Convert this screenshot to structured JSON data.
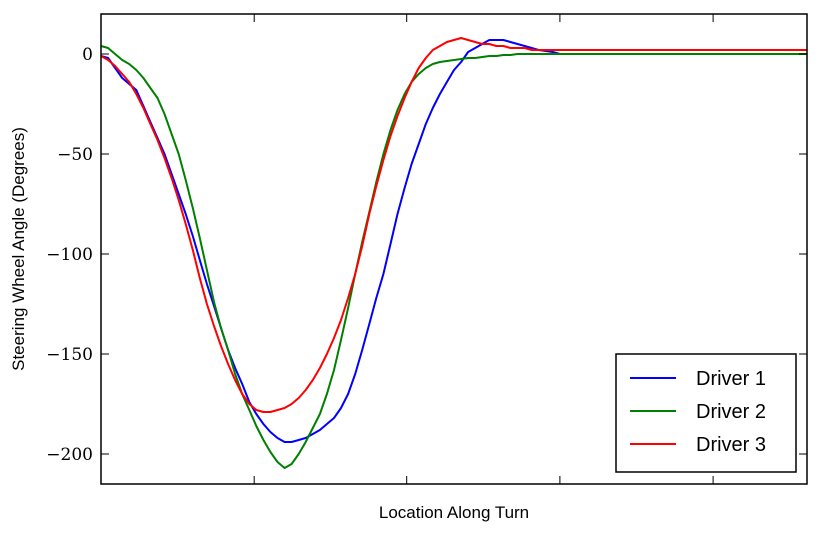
{
  "chart_data": {
    "type": "line",
    "xlabel": "Location Along Turn",
    "ylabel": "Steering Wheel Angle (Degrees)",
    "xlim": [
      0,
      100
    ],
    "ylim": [
      -215,
      20
    ],
    "x_ticks": [
      21.7,
      43.3,
      65.0,
      86.7
    ],
    "y_ticks": [
      0,
      -50,
      -100,
      -150,
      -200
    ],
    "y_tick_labels": [
      "0",
      "−50",
      "−100",
      "−150",
      "−200"
    ],
    "grid": false,
    "legend_position": "bottom-right",
    "series": [
      {
        "name": "Driver 1",
        "color": "#0000ff",
        "x": [
          0,
          1,
          2,
          3,
          4,
          5,
          6,
          7,
          8,
          9,
          10,
          11,
          12,
          13,
          14,
          15,
          16,
          17,
          18,
          19,
          20,
          21,
          22,
          23,
          24,
          25,
          26,
          27,
          28,
          29,
          30,
          31,
          32,
          33,
          34,
          35,
          36,
          37,
          38,
          39,
          40,
          41,
          42,
          43,
          44,
          45,
          46,
          47,
          48,
          49,
          50,
          51,
          52,
          53,
          54,
          55,
          56,
          57,
          58,
          59,
          60,
          61,
          62,
          63,
          64,
          65,
          66,
          67,
          68,
          69,
          70,
          71,
          72,
          73,
          74,
          75,
          76,
          77,
          78,
          79,
          80,
          81,
          82,
          83,
          84,
          85,
          86,
          87,
          88,
          89,
          90,
          91,
          92,
          93,
          94,
          95,
          96,
          97,
          98,
          99,
          100
        ],
        "values": [
          -1,
          -2,
          -7,
          -12,
          -15,
          -18,
          -26,
          -34,
          -42,
          -50,
          -60,
          -70,
          -80,
          -91,
          -103,
          -115,
          -126,
          -137,
          -148,
          -157,
          -165,
          -174,
          -180,
          -185,
          -189,
          -192,
          -194,
          -194,
          -193,
          -192,
          -190,
          -188,
          -185,
          -182,
          -177,
          -170,
          -160,
          -148,
          -135,
          -122,
          -110,
          -95,
          -80,
          -67,
          -55,
          -45,
          -35,
          -27,
          -20,
          -14,
          -8,
          -4,
          1,
          3,
          5,
          7,
          7,
          7,
          6,
          5,
          4,
          3,
          2,
          1.5,
          1,
          0,
          0,
          0,
          0,
          0,
          0,
          0,
          0,
          0,
          0,
          0,
          0,
          0,
          0,
          0,
          0,
          0,
          0,
          0,
          0,
          0,
          0,
          0,
          0,
          0,
          0,
          0,
          0,
          0,
          0,
          0,
          0,
          0,
          0,
          0,
          0
        ]
      },
      {
        "name": "Driver 2",
        "color": "#008000",
        "x": [
          0,
          1,
          2,
          3,
          4,
          5,
          6,
          7,
          8,
          9,
          10,
          11,
          12,
          13,
          14,
          15,
          16,
          17,
          18,
          19,
          20,
          21,
          22,
          23,
          24,
          25,
          26,
          27,
          28,
          29,
          30,
          31,
          32,
          33,
          34,
          35,
          36,
          37,
          38,
          39,
          40,
          41,
          42,
          43,
          44,
          45,
          46,
          47,
          48,
          49,
          50,
          51,
          52,
          53,
          54,
          55,
          56,
          57,
          58,
          59,
          60,
          61,
          62,
          63,
          64,
          65,
          66,
          67,
          68,
          69,
          70,
          71,
          72,
          73,
          74,
          75,
          76,
          77,
          78,
          79,
          80,
          81,
          82,
          83,
          84,
          85,
          86,
          87,
          88,
          89,
          90,
          91,
          92,
          93,
          94,
          95,
          96,
          97,
          98,
          99,
          100
        ],
        "values": [
          4,
          3,
          0,
          -3,
          -5,
          -8,
          -12,
          -17,
          -22,
          -30,
          -40,
          -50,
          -63,
          -77,
          -92,
          -108,
          -124,
          -137,
          -148,
          -160,
          -170,
          -178,
          -186,
          -193,
          -199,
          -204,
          -207,
          -205,
          -200,
          -194,
          -187,
          -180,
          -170,
          -158,
          -143,
          -127,
          -110,
          -94,
          -79,
          -64,
          -50,
          -38,
          -28,
          -20,
          -14,
          -10,
          -7,
          -5,
          -4,
          -3.5,
          -3,
          -2.5,
          -2,
          -2,
          -1.5,
          -1,
          -1,
          -0.5,
          -0.5,
          0,
          0,
          0,
          0,
          0,
          0,
          0,
          0,
          0,
          0,
          0,
          0,
          0,
          0,
          0,
          0,
          0,
          0,
          0,
          0,
          0,
          0,
          0,
          0,
          0,
          0,
          0,
          0,
          0,
          0,
          0,
          0,
          0,
          0,
          0,
          0,
          0,
          0,
          0,
          0,
          0,
          0
        ]
      },
      {
        "name": "Driver 3",
        "color": "#ff0000",
        "x": [
          0,
          1,
          2,
          3,
          4,
          5,
          6,
          7,
          8,
          9,
          10,
          11,
          12,
          13,
          14,
          15,
          16,
          17,
          18,
          19,
          20,
          21,
          22,
          23,
          24,
          25,
          26,
          27,
          28,
          29,
          30,
          31,
          32,
          33,
          34,
          35,
          36,
          37,
          38,
          39,
          40,
          41,
          42,
          43,
          44,
          45,
          46,
          47,
          48,
          49,
          50,
          51,
          52,
          53,
          54,
          55,
          56,
          57,
          58,
          59,
          60,
          61,
          62,
          63,
          64,
          65,
          66,
          67,
          68,
          69,
          70,
          71,
          72,
          73,
          74,
          75,
          76,
          77,
          78,
          79,
          80,
          81,
          82,
          83,
          84,
          85,
          86,
          87,
          88,
          89,
          90,
          91,
          92,
          93,
          94,
          95,
          96,
          97,
          98,
          99,
          100
        ],
        "values": [
          -1,
          -3,
          -6,
          -10,
          -14,
          -20,
          -27,
          -35,
          -43,
          -52,
          -62,
          -73,
          -85,
          -98,
          -112,
          -125,
          -136,
          -146,
          -155,
          -163,
          -170,
          -175,
          -178,
          -179,
          -179,
          -178,
          -177,
          -175,
          -172,
          -168,
          -163,
          -157,
          -150,
          -142,
          -133,
          -122,
          -110,
          -96,
          -80,
          -66,
          -53,
          -41,
          -31,
          -22,
          -14,
          -7,
          -2,
          2,
          4,
          6,
          7,
          8,
          7,
          6,
          5,
          5,
          4,
          4,
          3,
          3,
          3,
          2,
          2,
          2,
          2,
          2,
          2,
          2,
          2,
          2,
          2,
          2,
          2,
          2,
          2,
          2,
          2,
          2,
          2,
          2,
          2,
          2,
          2,
          2,
          2,
          2,
          2,
          2,
          2,
          2,
          2,
          2,
          2,
          2,
          2,
          2,
          2,
          2,
          2,
          2,
          2
        ]
      }
    ]
  }
}
